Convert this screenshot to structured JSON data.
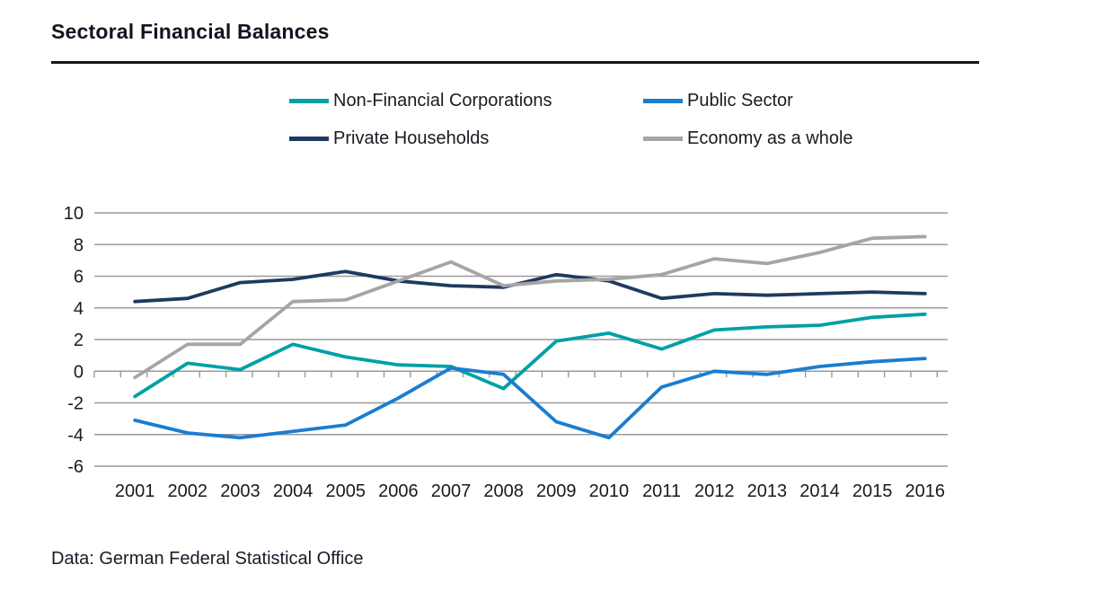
{
  "title": "Sectoral Financial Balances",
  "source": "Data: German Federal Statistical Office",
  "chart_data": {
    "type": "line",
    "title": "Sectoral Financial Balances",
    "xlabel": "",
    "ylabel": "",
    "x": [
      2001,
      2002,
      2003,
      2004,
      2005,
      2006,
      2007,
      2008,
      2009,
      2010,
      2011,
      2012,
      2013,
      2014,
      2015,
      2016
    ],
    "series": [
      {
        "name": "Non-Financial Corporations",
        "color": "#00A0A5",
        "values": [
          -1.6,
          0.5,
          0.1,
          1.7,
          0.9,
          0.4,
          0.3,
          -1.1,
          1.9,
          2.4,
          1.4,
          2.6,
          2.8,
          2.9,
          3.4,
          3.6
        ]
      },
      {
        "name": "Public Sector",
        "color": "#1A7DD0",
        "values": [
          -3.1,
          -3.9,
          -4.2,
          -3.8,
          -3.4,
          -1.7,
          0.2,
          -0.2,
          -3.2,
          -4.2,
          -1.0,
          0.0,
          -0.2,
          0.3,
          0.6,
          0.8
        ]
      },
      {
        "name": "Private Households",
        "color": "#1F3A60",
        "values": [
          4.4,
          4.6,
          5.6,
          5.8,
          6.3,
          5.7,
          5.4,
          5.3,
          6.1,
          5.7,
          4.6,
          4.9,
          4.8,
          4.9,
          5.0,
          4.9
        ]
      },
      {
        "name": "Economy as a whole",
        "color": "#A5A5A5",
        "values": [
          -0.4,
          1.7,
          1.7,
          4.4,
          4.5,
          5.7,
          6.9,
          5.4,
          5.7,
          5.8,
          6.1,
          7.1,
          6.8,
          7.5,
          8.4,
          8.5
        ]
      }
    ],
    "ylim": [
      -6,
      10
    ],
    "ytick_step": 2,
    "grid": "horizontal",
    "grid_color": "#9A9A9A",
    "axis_text_color": "#1a1a1a",
    "legend_position": "top"
  }
}
